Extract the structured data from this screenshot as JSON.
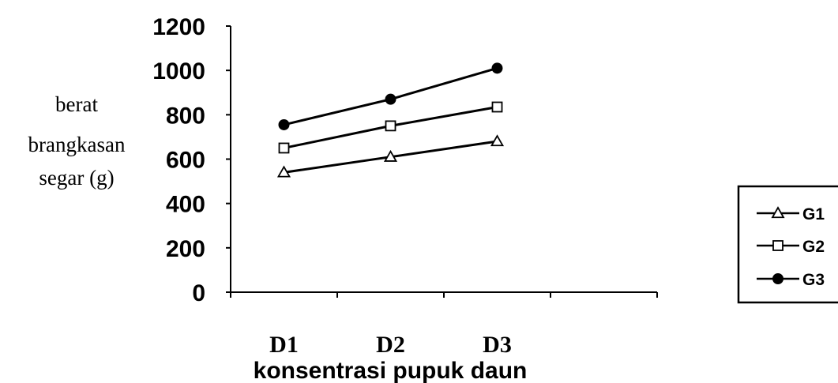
{
  "chart_data": {
    "type": "line",
    "categories": [
      "D1",
      "D2",
      "D3"
    ],
    "series": [
      {
        "name": "G1",
        "marker": "triangle-open",
        "values": [
          540,
          610,
          680
        ]
      },
      {
        "name": "G2",
        "marker": "square-open",
        "values": [
          650,
          750,
          835
        ]
      },
      {
        "name": "G3",
        "marker": "circle-filled",
        "values": [
          755,
          870,
          1010
        ]
      }
    ],
    "ylabel_lines": [
      "berat",
      "brangkasan",
      "segar (g)"
    ],
    "xlabel": "konsentrasi pupuk daun",
    "ylim": [
      0,
      1200
    ],
    "yticks": [
      "0",
      "200",
      "400",
      "600",
      "800",
      "1000",
      "1200"
    ],
    "x_slots": 4,
    "grid": false,
    "legend_position": "right",
    "line_color": "#000000"
  }
}
